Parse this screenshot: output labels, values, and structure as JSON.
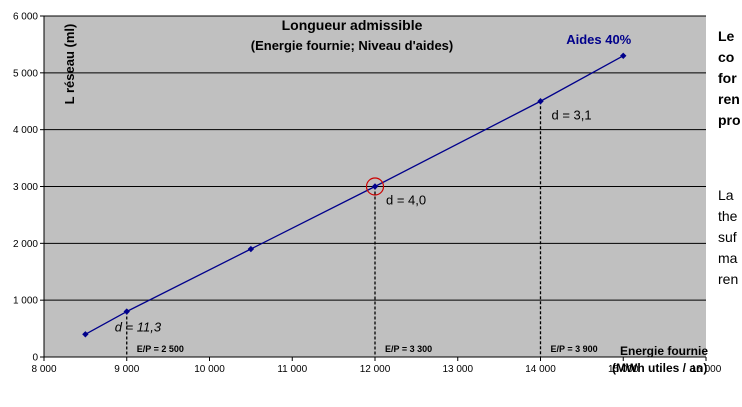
{
  "chart_data": {
    "type": "line",
    "title": "Longueur admissible",
    "subtitle": "(Energie fournie; Niveau d'aides)",
    "ylabel": "L réseau (ml)",
    "xlabel_line1": "Energie fournie",
    "xlabel_line2": "(MWh utiles / an)",
    "xlim": [
      8000,
      16000
    ],
    "ylim": [
      0,
      6000
    ],
    "x_ticks": [
      {
        "value": 8000,
        "label": "8 000"
      },
      {
        "value": 9000,
        "label": "9 000"
      },
      {
        "value": 10000,
        "label": "10 000"
      },
      {
        "value": 11000,
        "label": "11 000"
      },
      {
        "value": 12000,
        "label": "12 000"
      },
      {
        "value": 13000,
        "label": "13 000"
      },
      {
        "value": 14000,
        "label": "14 000"
      },
      {
        "value": 15000,
        "label": "15 000"
      },
      {
        "value": 16000,
        "label": "16 000"
      }
    ],
    "y_ticks": [
      {
        "value": 0,
        "label": "0"
      },
      {
        "value": 1000,
        "label": "1 000"
      },
      {
        "value": 2000,
        "label": "2 000"
      },
      {
        "value": 3000,
        "label": "3 000"
      },
      {
        "value": 4000,
        "label": "4 000"
      },
      {
        "value": 5000,
        "label": "5 000"
      },
      {
        "value": 6000,
        "label": "6 000"
      }
    ],
    "grid": "horizontal",
    "background": "#c0c0c0",
    "series": [
      {
        "name": "Aides 40%",
        "color": "#00008b",
        "points": [
          {
            "x": 8500,
            "y": 400
          },
          {
            "x": 9000,
            "y": 800
          },
          {
            "x": 10500,
            "y": 1900
          },
          {
            "x": 12000,
            "y": 3000
          },
          {
            "x": 14000,
            "y": 4500
          },
          {
            "x": 15000,
            "y": 5300
          }
        ]
      }
    ],
    "highlight": {
      "x": 12000,
      "y": 3000,
      "color": "#cc0000"
    },
    "annotations": [
      {
        "x": 9000,
        "y": 800,
        "d_label": "d = 11,3",
        "italic": true,
        "ep_label": "E/P = 2 500"
      },
      {
        "x": 12000,
        "y": 3000,
        "d_label": "d = 4,0",
        "italic": false,
        "ep_label": "E/P = 3 300"
      },
      {
        "x": 14000,
        "y": 4500,
        "d_label": "d = 3,1",
        "italic": false,
        "ep_label": "E/P = 3 900"
      }
    ]
  },
  "side_text": {
    "bold_lines": [
      "Le",
      "co",
      "for",
      "ren",
      "pro"
    ],
    "normal_lines": [
      "La",
      "the",
      "suf",
      "ma",
      "ren"
    ]
  }
}
